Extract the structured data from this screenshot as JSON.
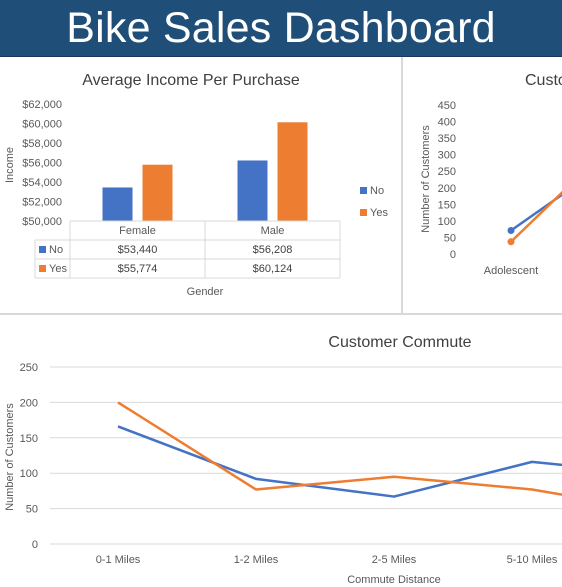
{
  "dashboard": {
    "title": "Bike Sales Dashboard",
    "colors": {
      "banner": "#1f4e79",
      "no": "#4472c4",
      "yes": "#ed7d31"
    }
  },
  "chart_data": [
    {
      "id": "income",
      "type": "bar",
      "title": "Average Income Per Purchase",
      "xlabel": "Gender",
      "ylabel": "Income",
      "categories": [
        "Female",
        "Male"
      ],
      "series": [
        {
          "name": "No",
          "values": [
            53440,
            56208
          ],
          "labels": [
            "$53,440",
            "$56,208"
          ],
          "color": "#4472c4"
        },
        {
          "name": "Yes",
          "values": [
            55774,
            60124
          ],
          "labels": [
            "$55,774",
            "$60,124"
          ],
          "color": "#ed7d31"
        }
      ],
      "ylim": [
        50000,
        62000
      ],
      "yticks": [
        50000,
        52000,
        54000,
        56000,
        58000,
        60000,
        62000
      ],
      "ytick_labels": [
        "$50,000",
        "$52,000",
        "$54,000",
        "$56,000",
        "$58,000",
        "$60,000",
        "$62,000"
      ],
      "legend": "right",
      "data_table": true
    },
    {
      "id": "age",
      "type": "line",
      "title": "Custo",
      "ylabel": "Number of Customers",
      "categories": [
        "Adolescent"
      ],
      "series": [
        {
          "name": "No",
          "values": [
            71
          ],
          "color": "#4472c4"
        },
        {
          "name": "Yes",
          "values": [
            37
          ],
          "color": "#ed7d31"
        }
      ],
      "ylim": [
        0,
        450
      ],
      "yticks": [
        0,
        50,
        100,
        150,
        200,
        250,
        300,
        350,
        400,
        450
      ]
    },
    {
      "id": "commute",
      "type": "line",
      "title": "Customer Commute",
      "xlabel": "Commute Distance",
      "ylabel": "Number of Customers",
      "categories": [
        "0-1 Miles",
        "1-2 Miles",
        "2-5 Miles",
        "5-10 Miles"
      ],
      "series": [
        {
          "name": "No",
          "values": [
            166,
            92,
            67,
            116
          ],
          "color": "#4472c4"
        },
        {
          "name": "Yes",
          "values": [
            200,
            77,
            95,
            77
          ],
          "color": "#ed7d31"
        }
      ],
      "ylim": [
        0,
        250
      ],
      "yticks": [
        0,
        50,
        100,
        150,
        200,
        250
      ],
      "grid": true
    }
  ]
}
